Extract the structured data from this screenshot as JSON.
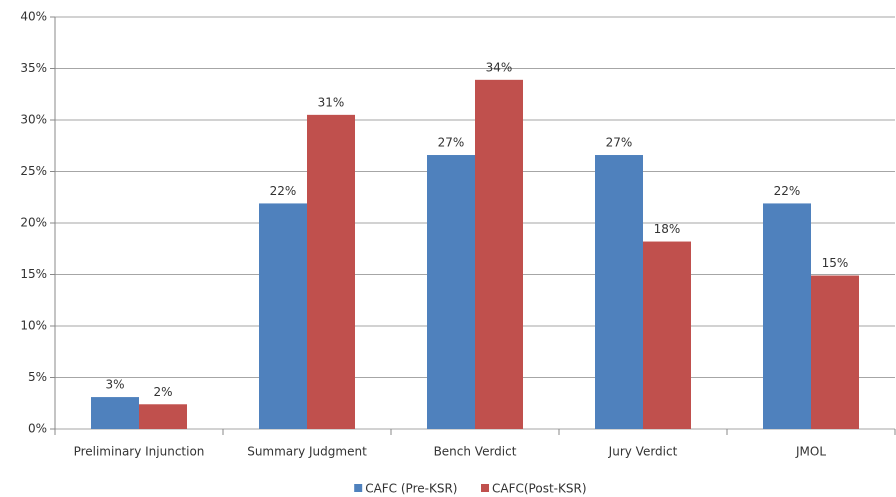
{
  "chart_data": {
    "type": "bar",
    "categories": [
      "Preliminary Injunction",
      "Summary Judgment",
      "Bench Verdict",
      "Jury Verdict",
      "JMOL"
    ],
    "series": [
      {
        "name": "CAFC (Pre-KSR)",
        "color": "#4f81bd",
        "values": [
          3.1,
          21.9,
          26.6,
          26.6,
          21.9
        ],
        "value_labels": [
          "3%",
          "22%",
          "27%",
          "27%",
          "22%"
        ]
      },
      {
        "name": "CAFC(Post-KSR)",
        "color": "#c0504d",
        "values": [
          2.4,
          30.5,
          33.9,
          18.2,
          14.9
        ],
        "value_labels": [
          "2%",
          "31%",
          "34%",
          "18%",
          "15%"
        ]
      }
    ],
    "ylim": [
      0,
      40
    ],
    "yticks": [
      {
        "value": 0,
        "label": "0%"
      },
      {
        "value": 5,
        "label": "5%"
      },
      {
        "value": 10,
        "label": "10%"
      },
      {
        "value": 15,
        "label": "15%"
      },
      {
        "value": 20,
        "label": "20%"
      },
      {
        "value": 25,
        "label": "25%"
      },
      {
        "value": 30,
        "label": "30%"
      },
      {
        "value": 35,
        "label": "35%"
      },
      {
        "value": 40,
        "label": "40%"
      }
    ],
    "grid": true,
    "legend": "bottom"
  }
}
